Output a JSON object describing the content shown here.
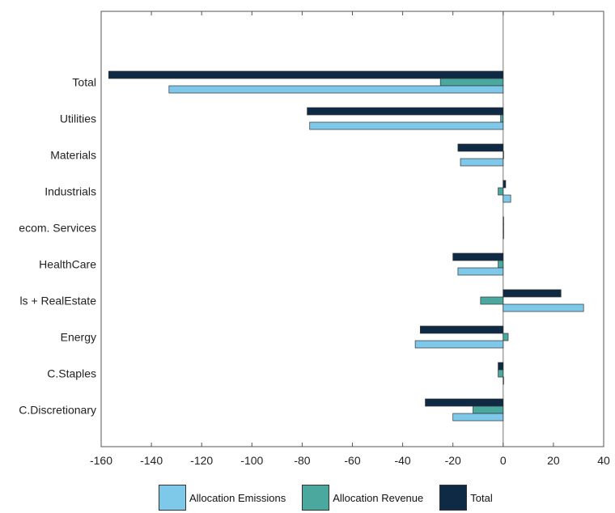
{
  "chart_data": {
    "type": "bar",
    "orientation": "horizontal",
    "categories": [
      "Total",
      "Utilities",
      "Materials",
      "Industrials",
      "Telecom. Services",
      "HealthCare",
      "Financials + RealEstate",
      "Energy",
      "C.Staples",
      "C.Discretionary"
    ],
    "category_labels_visible": [
      "Total",
      "Utilities",
      "Materials",
      "Industrials",
      "ecom. Services",
      "HealthCare",
      "ls + RealEstate",
      "Energy",
      "C.Staples",
      "C.Discretionary"
    ],
    "series": [
      {
        "name": "Total",
        "color": "#0f2a44",
        "values": [
          -157,
          -78,
          -18,
          1,
          0,
          -20,
          23,
          -33,
          -2,
          -31
        ]
      },
      {
        "name": "Allocation Revenue",
        "color": "#4aa89f",
        "values": [
          -25,
          -1,
          0,
          -2,
          0,
          -2,
          -9,
          2,
          -2,
          -12
        ]
      },
      {
        "name": "Allocation Emissions",
        "color": "#7ec8ea",
        "values": [
          -133,
          -77,
          -17,
          3,
          0,
          -18,
          32,
          -35,
          0,
          -20
        ]
      }
    ],
    "xlim": [
      -160,
      40
    ],
    "xticks": [
      -160,
      -140,
      -120,
      -100,
      -80,
      -60,
      -40,
      -20,
      0,
      20,
      40
    ],
    "grid": false,
    "legend_position": "bottom",
    "xlabel": "",
    "ylabel": "",
    "title": ""
  },
  "legend": [
    {
      "label": "Allocation Emissions",
      "color": "#7ec8ea"
    },
    {
      "label": "Allocation Revenue",
      "color": "#4aa89f"
    },
    {
      "label": "Total",
      "color": "#0f2a44"
    }
  ]
}
